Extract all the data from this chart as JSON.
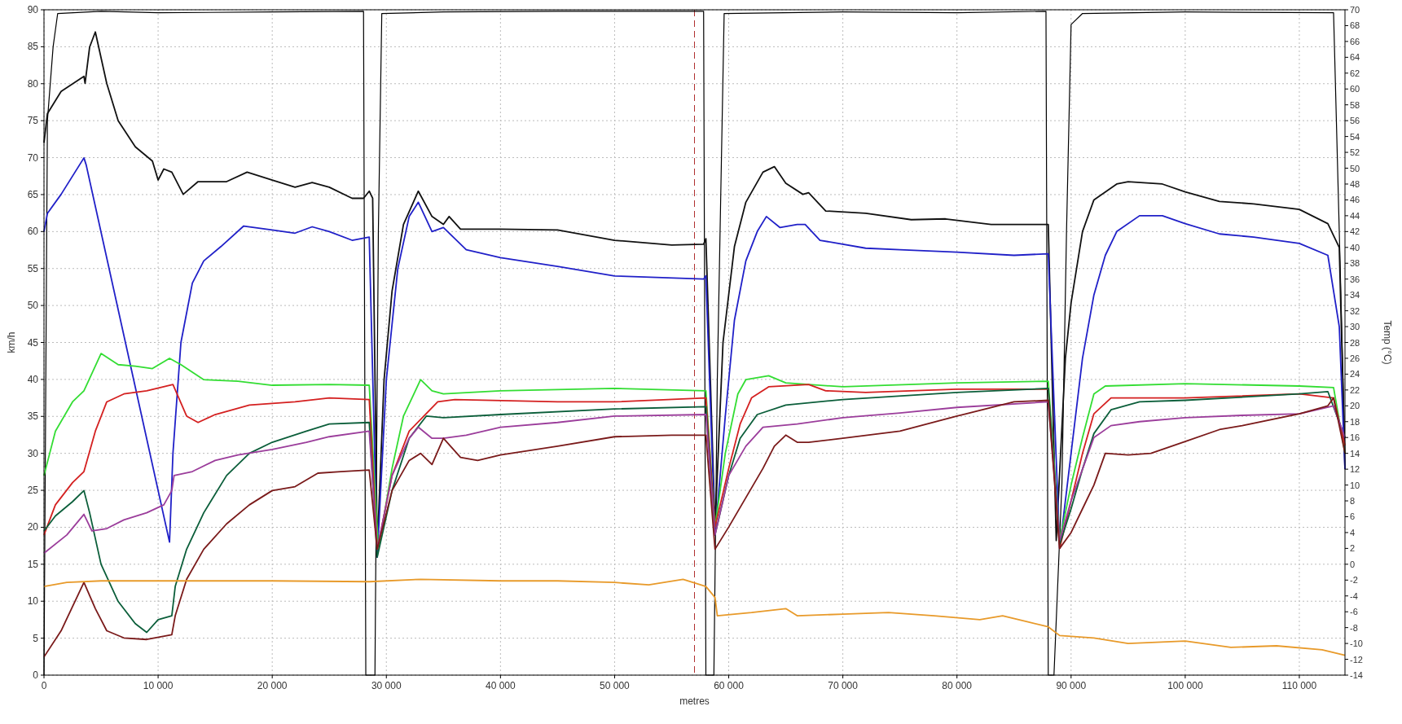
{
  "chart_data": {
    "type": "line",
    "xlabel": "metres",
    "ylabel": "km/h",
    "y2label": "Temp (°C)",
    "xlim": [
      0,
      114000
    ],
    "xticks": [
      0,
      {
        "value": 10000,
        "label": "10 000"
      },
      {
        "value": 20000,
        "label": "20 000"
      },
      {
        "value": 30000,
        "label": "30 000"
      },
      {
        "value": 40000,
        "label": "40 000"
      },
      {
        "value": 50000,
        "label": "50 000"
      },
      {
        "value": 60000,
        "label": "60 000"
      },
      {
        "value": 70000,
        "label": "70 000"
      },
      {
        "value": 80000,
        "label": "80 000"
      },
      {
        "value": 90000,
        "label": "90 000"
      },
      {
        "value": 100000,
        "label": "100 000"
      },
      {
        "value": 110000,
        "label": "110 000"
      }
    ],
    "ylim": [
      0,
      90
    ],
    "yticks": [
      0,
      5,
      10,
      15,
      20,
      25,
      30,
      35,
      40,
      45,
      50,
      55,
      60,
      65,
      70,
      75,
      80,
      85,
      90
    ],
    "y2lim": [
      -14,
      70
    ],
    "y2ticks": [
      -14,
      -12,
      -10,
      -8,
      -6,
      -4,
      -2,
      0,
      2,
      4,
      6,
      8,
      10,
      12,
      14,
      16,
      18,
      20,
      22,
      24,
      26,
      28,
      30,
      32,
      34,
      36,
      38,
      40,
      42,
      44,
      46,
      48,
      50,
      52,
      54,
      56,
      58,
      60,
      62,
      64,
      66,
      68,
      70
    ],
    "grid": true,
    "line_style": "solid",
    "ref_lines": [
      {
        "axis": "x",
        "value": 57000,
        "color": "#b03030",
        "line_style": "dashed"
      }
    ],
    "series": [
      {
        "color": "#000000",
        "x": [
          0,
          300,
          800,
          1200,
          5000,
          10000,
          20000,
          28000,
          28200,
          29000,
          29300,
          29600,
          35000,
          45000,
          57800,
          58000,
          58700,
          59000,
          59600,
          70000,
          80000,
          87800,
          88000,
          88500,
          89200,
          89600,
          90000,
          91000,
          100000,
          113000,
          113500,
          114000
        ],
        "values": [
          0,
          75,
          85,
          89.5,
          89.8,
          89.6,
          89.7,
          89.8,
          0,
          0,
          60,
          89.5,
          89.7,
          89.8,
          89.8,
          0,
          0,
          40,
          89.5,
          89.7,
          89.6,
          89.8,
          0,
          0,
          26,
          60,
          88,
          89.5,
          89.7,
          89.6,
          60,
          30
        ]
      },
      {
        "axis": "y2",
        "color": "#111111",
        "x": [
          0,
          300,
          1500,
          3500,
          3600,
          4000,
          4500,
          5500,
          6500,
          8000,
          9500,
          10000,
          10500,
          11200,
          12200,
          13500,
          16000,
          17800,
          20000,
          22000,
          23500,
          25000,
          27000,
          28000,
          28500,
          28800,
          29200,
          29800,
          30500,
          31500,
          32800,
          34000,
          35000,
          35500,
          36500,
          40000,
          45000,
          50000,
          55000,
          57800,
          58000,
          58800,
          59500,
          60500,
          61500,
          63000,
          64000,
          65000,
          66500,
          67000,
          68500,
          72000,
          76000,
          79000,
          83000,
          88000,
          88700,
          89500,
          90000,
          91000,
          92000,
          94000,
          95000,
          98000,
          100000,
          103000,
          106000,
          110000,
          112500,
          113500,
          114000
        ],
        "values": [
          53.2,
          56.9,
          59.7,
          61.6,
          60.7,
          65.3,
          67.2,
          60.7,
          56,
          52.7,
          50.9,
          48.5,
          49.9,
          49.5,
          46.7,
          48.3,
          48.3,
          49.5,
          48.5,
          47.6,
          48.2,
          47.6,
          46.2,
          46.2,
          47.1,
          46.2,
          1.9,
          23.3,
          34.5,
          42.9,
          47.1,
          43.9,
          42.9,
          43.9,
          42.3,
          42.3,
          42.2,
          40.9,
          40.3,
          40.4,
          41.1,
          4.7,
          28,
          40.1,
          45.7,
          49.5,
          50.2,
          48.1,
          46.7,
          46.9,
          44.6,
          44.3,
          43.5,
          43.6,
          42.9,
          42.9,
          3,
          26,
          33,
          42,
          46,
          48,
          48.3,
          48,
          47,
          45.8,
          45.5,
          44.8,
          43,
          40,
          12
        ]
      },
      {
        "axis": "y2",
        "color": "#2020c8",
        "x": [
          0,
          300,
          1500,
          3500,
          3700,
          11000,
          11300,
          12000,
          13000,
          14000,
          15500,
          17500,
          20000,
          22000,
          23500,
          25000,
          27000,
          28500,
          29200,
          30000,
          31000,
          32000,
          32800,
          34000,
          35000,
          37000,
          40000,
          45000,
          50000,
          57800,
          58000,
          58800,
          59700,
          60500,
          61500,
          62500,
          63300,
          64500,
          66000,
          66700,
          68000,
          72000,
          75000,
          80000,
          85000,
          88000,
          89000,
          90000,
          91000,
          92000,
          93000,
          94000,
          96000,
          98000,
          100000,
          103000,
          106000,
          110000,
          112500,
          113500,
          114000
        ],
        "values": [
          42,
          44.3,
          46.7,
          51.3,
          50.4,
          2.8,
          14,
          28,
          35.5,
          38.3,
          40.1,
          42.7,
          42.2,
          41.8,
          42.6,
          42,
          40.9,
          41.3,
          0.9,
          23.3,
          37.3,
          43.9,
          45.7,
          42,
          42.5,
          39.7,
          38.7,
          37.6,
          36.4,
          36,
          36.4,
          3.7,
          18.7,
          30.8,
          38.3,
          42,
          43.9,
          42.5,
          42.9,
          42.9,
          40.9,
          39.9,
          39.7,
          39.4,
          39,
          39.2,
          2,
          14,
          26,
          34,
          39,
          42,
          44,
          44,
          43,
          41.7,
          41.3,
          40.5,
          39,
          30,
          12
        ]
      },
      {
        "axis": "y2",
        "color": "#33dd33",
        "x": [
          0,
          1000,
          2500,
          3500,
          5000,
          6500,
          8000,
          9500,
          11000,
          12000,
          14000,
          17000,
          20000,
          25000,
          28500,
          29300,
          30500,
          31500,
          33000,
          34000,
          35000,
          40000,
          50000,
          58000,
          58800,
          59700,
          60800,
          61500,
          63500,
          65000,
          70000,
          80000,
          88000,
          89000,
          90000,
          91000,
          92000,
          93000,
          100000,
          110000,
          113000,
          114000
        ],
        "values": [
          11.2,
          16.8,
          20.5,
          21.9,
          26.6,
          25.2,
          25,
          24.7,
          26,
          25.2,
          23.3,
          23.1,
          22.6,
          22.7,
          22.6,
          1.9,
          12.1,
          18.7,
          23.3,
          21.9,
          21.5,
          21.9,
          22.2,
          21.9,
          4.7,
          14,
          21.5,
          23.3,
          23.8,
          22.9,
          22.4,
          22.9,
          23.1,
          3,
          10,
          16,
          21.5,
          22.5,
          22.8,
          22.5,
          22.3,
          14
        ]
      },
      {
        "axis": "y2",
        "color": "#d42020",
        "x": [
          0,
          1000,
          2500,
          3500,
          4500,
          5500,
          7000,
          9000,
          11300,
          12500,
          13500,
          15000,
          18000,
          22000,
          25000,
          28500,
          29200,
          30500,
          32000,
          34500,
          36000,
          45000,
          50000,
          58000,
          58800,
          60000,
          61000,
          62000,
          63500,
          67000,
          68500,
          72000,
          80000,
          88000,
          89000,
          90000,
          91000,
          92000,
          93500,
          100000,
          110000,
          113000,
          114000
        ],
        "values": [
          3.7,
          7.5,
          10.3,
          11.7,
          16.8,
          20.5,
          21.5,
          21.9,
          22.7,
          18.7,
          17.9,
          18.9,
          20.1,
          20.5,
          21,
          20.8,
          1.9,
          11.2,
          16.8,
          20.5,
          20.8,
          20.5,
          20.5,
          21,
          4.7,
          12.1,
          17.7,
          21,
          22.4,
          22.7,
          21.9,
          21.7,
          22.1,
          22.1,
          2,
          8,
          14,
          19,
          21,
          21,
          21.5,
          21,
          15
        ]
      },
      {
        "axis": "y2",
        "color": "#0b5e3a",
        "x": [
          0,
          1000,
          2500,
          3500,
          4000,
          5000,
          6500,
          8000,
          9000,
          10000,
          11200,
          11500,
          12500,
          14000,
          16000,
          18000,
          20000,
          23000,
          25000,
          28500,
          29200,
          30500,
          32000,
          33500,
          35000,
          40000,
          50000,
          58000,
          58800,
          60000,
          61000,
          62500,
          65000,
          70000,
          80000,
          88000,
          89000,
          90000,
          91000,
          92000,
          93500,
          96000,
          100000,
          110000,
          112500,
          114000
        ],
        "values": [
          4.2,
          6.1,
          7.9,
          9.3,
          6.5,
          0,
          -4.7,
          -7.5,
          -8.6,
          -7,
          -6.5,
          -2.8,
          1.9,
          6.5,
          11.2,
          14,
          15.4,
          16.8,
          17.7,
          17.9,
          0.9,
          9.3,
          15.9,
          18.7,
          18.5,
          18.9,
          19.6,
          19.9,
          3.7,
          11.2,
          15.9,
          18.9,
          20.1,
          20.8,
          21.7,
          22.2,
          2.5,
          7,
          12,
          16.5,
          19.5,
          20.5,
          20.7,
          21.5,
          21.8,
          16
        ]
      },
      {
        "axis": "y2",
        "color": "#9b3d9b",
        "x": [
          0,
          2000,
          3500,
          4200,
          5500,
          7000,
          9000,
          10500,
          11200,
          11400,
          13000,
          15000,
          17000,
          20000,
          23000,
          25000,
          28500,
          29200,
          30500,
          32000,
          32800,
          34000,
          35000,
          37000,
          40000,
          45000,
          50000,
          58000,
          58800,
          60000,
          61500,
          63000,
          66000,
          70000,
          75000,
          80000,
          88000,
          89000,
          90000,
          91000,
          92000,
          93500,
          96000,
          100000,
          105000,
          110000,
          113000,
          114000
        ],
        "values": [
          1.4,
          3.7,
          6.3,
          4.2,
          4.5,
          5.6,
          6.5,
          7.5,
          9.3,
          11.2,
          11.7,
          13.1,
          13.8,
          14.5,
          15.4,
          16.1,
          16.8,
          1.9,
          11.2,
          15.9,
          17.3,
          15.9,
          15.9,
          16.3,
          17.3,
          17.9,
          18.7,
          18.9,
          3.7,
          11.2,
          14.9,
          17.3,
          17.7,
          18.5,
          19.1,
          19.8,
          20.5,
          3,
          8,
          12,
          16,
          17.5,
          18,
          18.5,
          18.8,
          19,
          20,
          16
        ]
      },
      {
        "axis": "y2",
        "color": "#7a1a1a",
        "x": [
          0,
          1500,
          3500,
          4500,
          5500,
          7000,
          9000,
          11200,
          11500,
          12500,
          14000,
          16000,
          18000,
          20000,
          22000,
          24000,
          26000,
          28500,
          29200,
          30500,
          32000,
          33000,
          34000,
          35000,
          36500,
          38000,
          40000,
          45000,
          50000,
          55000,
          58000,
          58800,
          60000,
          61500,
          63000,
          64000,
          65000,
          66000,
          67000,
          70000,
          75000,
          80000,
          85000,
          88000,
          89000,
          90000,
          91000,
          92000,
          93000,
          95000,
          97000,
          100000,
          103000,
          105000,
          110000,
          112500,
          113000,
          114000
        ],
        "values": [
          -11.7,
          -8.4,
          -2.3,
          -5.6,
          -8.4,
          -9.3,
          -9.5,
          -8.9,
          -6.5,
          -1.9,
          1.9,
          5.1,
          7.5,
          9.3,
          9.8,
          11.5,
          11.7,
          11.9,
          1.9,
          9.3,
          13.1,
          14,
          12.6,
          15.9,
          13.5,
          13.1,
          13.8,
          14.9,
          16.1,
          16.3,
          16.3,
          1.9,
          4.7,
          8.4,
          12.1,
          14.9,
          16.3,
          15.4,
          15.4,
          15.9,
          16.8,
          18.7,
          20.5,
          20.7,
          2,
          4,
          7,
          10,
          14,
          13.8,
          14,
          15.5,
          17,
          17.5,
          19,
          20,
          21,
          14
        ]
      },
      {
        "axis": "y2",
        "color": "#e89a2a",
        "x": [
          0,
          2000,
          5000,
          10000,
          20000,
          28500,
          33000,
          40000,
          45000,
          50000,
          53000,
          56000,
          58000,
          58800,
          59000,
          62000,
          65000,
          66000,
          70000,
          74000,
          78000,
          82000,
          84000,
          88000,
          89000,
          92000,
          95000,
          100000,
          104000,
          108000,
          112000,
          114000
        ],
        "values": [
          -2.8,
          -2.3,
          -2.1,
          -2.1,
          -2.1,
          -2.2,
          -1.9,
          -2.1,
          -2.1,
          -2.3,
          -2.6,
          -1.9,
          -2.8,
          -4.2,
          -6.5,
          -6.1,
          -5.6,
          -6.5,
          -6.3,
          -6.1,
          -6.5,
          -7,
          -6.5,
          -7.9,
          -9,
          -9.3,
          -10,
          -9.7,
          -10.5,
          -10.3,
          -10.8,
          -11.5
        ]
      }
    ]
  }
}
